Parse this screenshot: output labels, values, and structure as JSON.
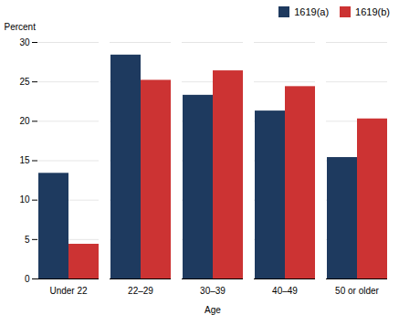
{
  "chart_data": {
    "type": "bar",
    "categories": [
      "Under 22",
      "22–29",
      "30–39",
      "40–49",
      "50 or older"
    ],
    "series": [
      {
        "name": "1619(a)",
        "color": "#1e3a5f",
        "values": [
          13.4,
          28.4,
          23.3,
          21.3,
          15.4
        ]
      },
      {
        "name": "1619(b)",
        "color": "#cc3333",
        "values": [
          4.4,
          25.2,
          26.4,
          24.4,
          20.3
        ]
      }
    ],
    "xlabel": "Age",
    "ylabel": "Percent",
    "ylim": [
      0,
      30
    ],
    "yticks": [
      0,
      5,
      10,
      15,
      20,
      25,
      30
    ],
    "grid": true,
    "legend": "upper right"
  }
}
